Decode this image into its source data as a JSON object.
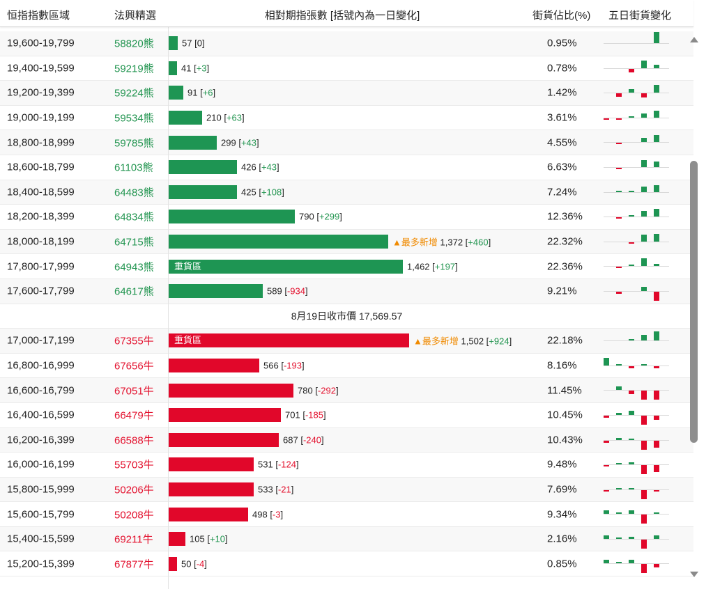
{
  "header": {
    "range": "恒指指數區域",
    "code": "法興精選",
    "bar": "相對期指張數 [括號內為一日變化]",
    "pct": "街貨佔比(%)",
    "trend": "五日街貨變化"
  },
  "colors": {
    "bear": "#1e9553",
    "bull": "#e1072a",
    "accent_new": "#f08a00"
  },
  "icons": {
    "scroll_up": "triangle-up",
    "scroll_down": "triangle-down",
    "new_tag": "triangle-up"
  },
  "rows": [
    {
      "range": "19,600-19,799",
      "code": "58820熊",
      "type": "bear",
      "contracts": "57",
      "change": "0",
      "change_sign": "zero",
      "pct": "0.95%",
      "heavy": "",
      "new_tag": "",
      "heavy_label": "",
      "new_label": "",
      "spark": [
        0,
        0,
        0,
        0,
        1
      ]
    },
    {
      "range": "19,400-19,599",
      "code": "59219熊",
      "type": "bear",
      "contracts": "41",
      "change": "+3",
      "change_sign": "pos",
      "pct": "0.78%",
      "heavy": "",
      "new_tag": "",
      "heavy_label": "",
      "new_label": "",
      "spark": [
        0,
        0,
        -0.3,
        0.7,
        0.3
      ]
    },
    {
      "range": "19,200-19,399",
      "code": "59224熊",
      "type": "bear",
      "contracts": "91",
      "change": "+6",
      "change_sign": "pos",
      "pct": "1.42%",
      "heavy": "",
      "new_tag": "",
      "heavy_label": "",
      "new_label": "",
      "spark": [
        0,
        -0.3,
        0.3,
        -0.4,
        0.7
      ]
    },
    {
      "range": "19,000-19,199",
      "code": "59534熊",
      "type": "bear",
      "contracts": "210",
      "change": "+63",
      "change_sign": "pos",
      "pct": "3.61%",
      "heavy": "",
      "new_tag": "",
      "heavy_label": "",
      "new_label": "",
      "spark": [
        -0.1,
        -0.1,
        0.1,
        0.4,
        0.6
      ]
    },
    {
      "range": "18,800-18,999",
      "code": "59785熊",
      "type": "bear",
      "contracts": "299",
      "change": "+43",
      "change_sign": "pos",
      "pct": "4.55%",
      "heavy": "",
      "new_tag": "",
      "heavy_label": "",
      "new_label": "",
      "spark": [
        0,
        -0.1,
        0,
        0.4,
        0.6
      ]
    },
    {
      "range": "18,600-18,799",
      "code": "61103熊",
      "type": "bear",
      "contracts": "426",
      "change": "+43",
      "change_sign": "pos",
      "pct": "6.63%",
      "heavy": "",
      "new_tag": "",
      "heavy_label": "",
      "new_label": "",
      "spark": [
        0,
        -0.1,
        0,
        0.6,
        0.5
      ]
    },
    {
      "range": "18,400-18,599",
      "code": "64483熊",
      "type": "bear",
      "contracts": "425",
      "change": "+108",
      "change_sign": "pos",
      "pct": "7.24%",
      "heavy": "",
      "new_tag": "",
      "heavy_label": "",
      "new_label": "",
      "spark": [
        0,
        0.1,
        0.1,
        0.5,
        0.6
      ]
    },
    {
      "range": "18,200-18,399",
      "code": "64834熊",
      "type": "bear",
      "contracts": "790",
      "change": "+299",
      "change_sign": "pos",
      "pct": "12.36%",
      "heavy": "",
      "new_tag": "",
      "heavy_label": "",
      "new_label": "",
      "spark": [
        0,
        -0.1,
        0.1,
        0.5,
        0.7
      ]
    },
    {
      "range": "18,000-18,199",
      "code": "64715熊",
      "type": "bear",
      "contracts": "1,372",
      "change": "+460",
      "change_sign": "pos",
      "pct": "22.32%",
      "heavy": "",
      "new_tag": "yes",
      "heavy_label": "",
      "new_label": "最多新增",
      "spark": [
        0,
        0,
        -0.1,
        0.6,
        0.7
      ]
    },
    {
      "range": "17,800-17,999",
      "code": "64943熊",
      "type": "bear",
      "contracts": "1,462",
      "change": "+197",
      "change_sign": "pos",
      "pct": "22.36%",
      "heavy": "yes",
      "new_tag": "",
      "heavy_label": "重貨區",
      "new_label": "",
      "spark": [
        0,
        -0.1,
        0.1,
        0.7,
        0.2
      ]
    },
    {
      "range": "17,600-17,799",
      "code": "64617熊",
      "type": "bear",
      "contracts": "589",
      "change": "-934",
      "change_sign": "neg",
      "pct": "9.21%",
      "heavy": "",
      "new_tag": "",
      "heavy_label": "",
      "new_label": "",
      "spark": [
        0,
        -0.2,
        0,
        0.4,
        -0.8
      ]
    }
  ],
  "price_label": "8月19日收市價 17,569.57",
  "bull_rows": [
    {
      "range": "17,000-17,199",
      "code": "67355牛",
      "type": "bull",
      "contracts": "1,502",
      "change": "+924",
      "change_sign": "pos",
      "pct": "22.18%",
      "heavy": "yes",
      "new_tag": "yes",
      "heavy_label": "重貨區",
      "new_label": "最多新增",
      "spark": [
        0,
        0,
        0.1,
        0.5,
        0.8
      ]
    },
    {
      "range": "16,800-16,999",
      "code": "67656牛",
      "type": "bull",
      "contracts": "566",
      "change": "-193",
      "change_sign": "neg",
      "pct": "8.16%",
      "heavy": "",
      "new_tag": "",
      "heavy_label": "",
      "new_label": "",
      "spark": [
        0.7,
        0.1,
        -0.2,
        0.1,
        -0.2
      ]
    },
    {
      "range": "16,600-16,799",
      "code": "67051牛",
      "type": "bull",
      "contracts": "780",
      "change": "-292",
      "change_sign": "neg",
      "pct": "11.45%",
      "heavy": "",
      "new_tag": "",
      "heavy_label": "",
      "new_label": "",
      "spark": [
        0,
        0.3,
        -0.3,
        -0.8,
        -0.8
      ]
    },
    {
      "range": "16,400-16,599",
      "code": "66479牛",
      "type": "bull",
      "contracts": "701",
      "change": "-185",
      "change_sign": "neg",
      "pct": "10.45%",
      "heavy": "",
      "new_tag": "",
      "heavy_label": "",
      "new_label": "",
      "spark": [
        -0.2,
        0.2,
        0.4,
        -0.8,
        -0.4
      ]
    },
    {
      "range": "16,200-16,399",
      "code": "66588牛",
      "type": "bull",
      "contracts": "687",
      "change": "-240",
      "change_sign": "neg",
      "pct": "10.43%",
      "heavy": "",
      "new_tag": "",
      "heavy_label": "",
      "new_label": "",
      "spark": [
        -0.2,
        0.2,
        0.1,
        -0.8,
        -0.6
      ]
    },
    {
      "range": "16,000-16,199",
      "code": "55703牛",
      "type": "bull",
      "contracts": "531",
      "change": "-124",
      "change_sign": "neg",
      "pct": "9.48%",
      "heavy": "",
      "new_tag": "",
      "heavy_label": "",
      "new_label": "",
      "spark": [
        -0.1,
        0.1,
        0.2,
        -0.8,
        -0.6
      ]
    },
    {
      "range": "15,800-15,999",
      "code": "50206牛",
      "type": "bull",
      "contracts": "533",
      "change": "-21",
      "change_sign": "neg",
      "pct": "7.69%",
      "heavy": "",
      "new_tag": "",
      "heavy_label": "",
      "new_label": "",
      "spark": [
        -0.1,
        0.1,
        0.1,
        -0.8,
        -0.1
      ]
    },
    {
      "range": "15,600-15,799",
      "code": "50208牛",
      "type": "bull",
      "contracts": "498",
      "change": "-3",
      "change_sign": "neg",
      "pct": "9.34%",
      "heavy": "",
      "new_tag": "",
      "heavy_label": "",
      "new_label": "",
      "spark": [
        0.3,
        0.1,
        0.3,
        -0.8,
        0.1
      ]
    },
    {
      "range": "15,400-15,599",
      "code": "69211牛",
      "type": "bull",
      "contracts": "105",
      "change": "+10",
      "change_sign": "pos",
      "pct": "2.16%",
      "heavy": "",
      "new_tag": "",
      "heavy_label": "",
      "new_label": "",
      "spark": [
        0.3,
        0.1,
        0.2,
        -0.8,
        0.3
      ]
    },
    {
      "range": "15,200-15,399",
      "code": "67877牛",
      "type": "bull",
      "contracts": "50",
      "change": "-4",
      "change_sign": "neg",
      "pct": "0.85%",
      "heavy": "",
      "new_tag": "",
      "heavy_label": "",
      "new_label": "",
      "spark": [
        0.3,
        0.1,
        0.3,
        -0.8,
        -0.3
      ]
    }
  ]
}
